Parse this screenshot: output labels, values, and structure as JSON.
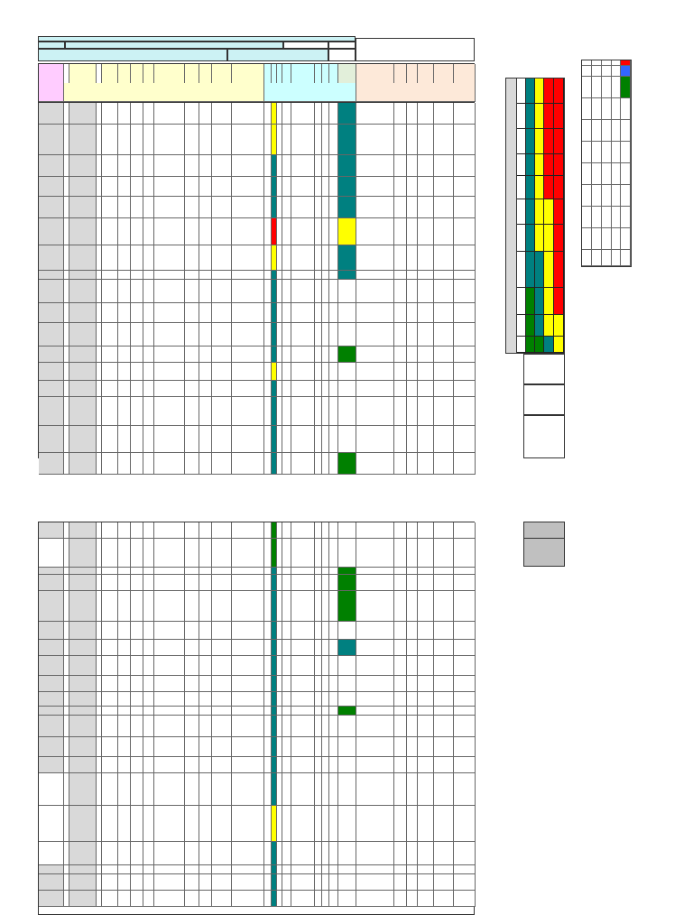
{
  "title_banner": "",
  "process_label": "",
  "process_value": "",
  "code_label": "",
  "version_label": "",
  "date_label": "",
  "date_value": "",
  "page_label": "",
  "header_columns": [
    "",
    "",
    "",
    "",
    "",
    "",
    "",
    "",
    "",
    "",
    "",
    "",
    "",
    "",
    "",
    "",
    "",
    "",
    "",
    "",
    "",
    "",
    "",
    "",
    "",
    "",
    "",
    ""
  ],
  "vertical_label": "",
  "side_legend_headers": [
    "",
    "",
    "",
    "",
    ""
  ],
  "lower_side_label": "",
  "colors": {
    "header_cyan": "#ccf2f4",
    "risk_yellow": "#ffff00",
    "risk_teal": "#008080",
    "risk_green": "#008000",
    "risk_red": "#ff0000",
    "legend_blue": "#3366ff",
    "row_grey": "#d9d9d9"
  }
}
